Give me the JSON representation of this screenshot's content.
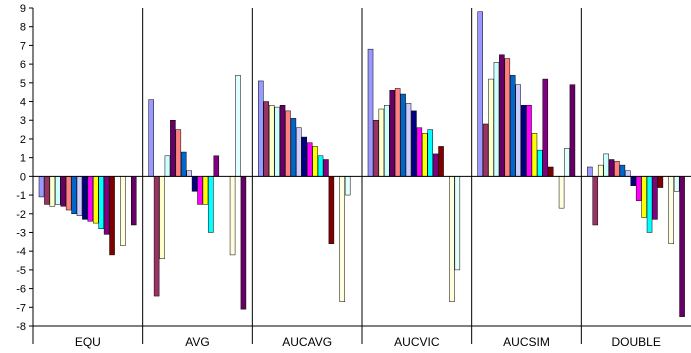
{
  "chart_data": {
    "type": "bar",
    "title": "",
    "xlabel": "",
    "ylabel": "",
    "ylim": [
      -8,
      9
    ],
    "yticks": [
      "9",
      "8",
      "7",
      "6",
      "5",
      "4",
      "3",
      "2",
      "1",
      "0",
      "-1",
      "-2",
      "-3",
      "-4",
      "-5",
      "-6",
      "-7",
      "-8"
    ],
    "categories": [
      "EQU",
      "AVG",
      "AUCAVG",
      "AUCVIC",
      "AUCSIM",
      "DOUBLE"
    ],
    "grid": false,
    "legend": "none",
    "series_colors": [
      "#9999ff",
      "#993366",
      "#ffffcc",
      "#ccffff",
      "#660066",
      "#ff8080",
      "#0066cc",
      "#ccccff",
      "#000080",
      "#ff00ff",
      "#ffff00",
      "#00ffff",
      "#800080",
      "#800000",
      "#008080",
      "#ffffe0",
      "#e0ffff",
      "#660066"
    ],
    "groups": [
      {
        "category": "EQU",
        "values": [
          -1.1,
          -1.5,
          -1.6,
          -1.5,
          -1.6,
          -1.8,
          -2.0,
          -2.1,
          -2.3,
          -2.4,
          -2.5,
          -2.8,
          -3.1,
          -4.2,
          0.0,
          -3.7,
          0.0,
          -2.6
        ]
      },
      {
        "category": "AVG",
        "values": [
          4.1,
          -6.4,
          -4.4,
          1.1,
          3.0,
          2.5,
          1.3,
          0.3,
          -0.8,
          -1.5,
          -1.5,
          -3.0,
          1.1,
          0.0,
          0.0,
          -4.2,
          5.4,
          -7.1
        ]
      },
      {
        "category": "AUCAVG",
        "values": [
          5.1,
          4.0,
          3.8,
          3.7,
          3.8,
          3.5,
          3.1,
          2.6,
          2.1,
          1.8,
          1.6,
          1.1,
          0.9,
          -3.6,
          0.0,
          -6.7,
          -1.0,
          0.0
        ]
      },
      {
        "category": "AUCVIC",
        "values": [
          6.8,
          3.0,
          3.6,
          3.8,
          4.6,
          4.7,
          4.4,
          3.9,
          3.5,
          2.6,
          2.3,
          2.5,
          1.2,
          1.6,
          0.0,
          -6.7,
          -5.0,
          0.0
        ]
      },
      {
        "category": "AUCSIM",
        "values": [
          8.8,
          2.8,
          5.2,
          6.1,
          6.5,
          6.3,
          5.4,
          4.9,
          3.8,
          3.8,
          2.3,
          1.4,
          5.2,
          0.5,
          0.0,
          -1.7,
          1.5,
          4.9
        ]
      },
      {
        "category": "DOUBLE",
        "values": [
          0.5,
          -2.6,
          0.6,
          1.2,
          0.9,
          0.8,
          0.6,
          0.3,
          -0.5,
          -1.3,
          -2.2,
          -3.0,
          -2.3,
          -0.6,
          0.0,
          -3.6,
          -0.8,
          -7.5
        ]
      }
    ]
  }
}
